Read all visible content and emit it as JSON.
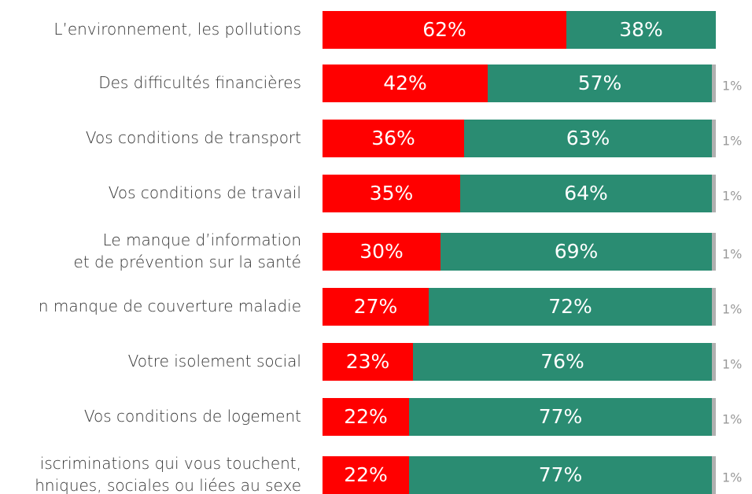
{
  "chart_data": {
    "type": "stacked-bar-horizontal",
    "categories": [
      "L’environnement, les pollutions",
      "Des difficultés financières",
      "Vos conditions de transport",
      "Vos conditions de travail",
      "Le manque d’information\net de prévention sur la santé",
      "n manque de couverture maladie",
      "Votre isolement social",
      "Vos conditions de logement",
      "iscriminations qui vous touchent,\nhniques, sociales ou liées au sexe"
    ],
    "xlim": [
      0,
      100
    ],
    "series": [
      {
        "color": "#ff0000",
        "values": [
          62,
          42,
          36,
          35,
          30,
          27,
          23,
          22,
          22
        ],
        "value_labels": [
          "62%",
          "42%",
          "36%",
          "35%",
          "30%",
          "27%",
          "23%",
          "22%",
          "22%"
        ]
      },
      {
        "color": "#2a8c72",
        "values": [
          38,
          57,
          63,
          64,
          69,
          72,
          76,
          77,
          77
        ],
        "value_labels": [
          "38%",
          "57%",
          "63%",
          "64%",
          "69%",
          "72%",
          "76%",
          "77%",
          "77%"
        ]
      },
      {
        "color": "#b0b0b0",
        "values": [
          null,
          1,
          1,
          1,
          1,
          1,
          1,
          1,
          1
        ],
        "value_labels": [
          null,
          "1%",
          "1%",
          "1%",
          "1%",
          "1%",
          "1%",
          "1%",
          "1%"
        ]
      }
    ]
  }
}
